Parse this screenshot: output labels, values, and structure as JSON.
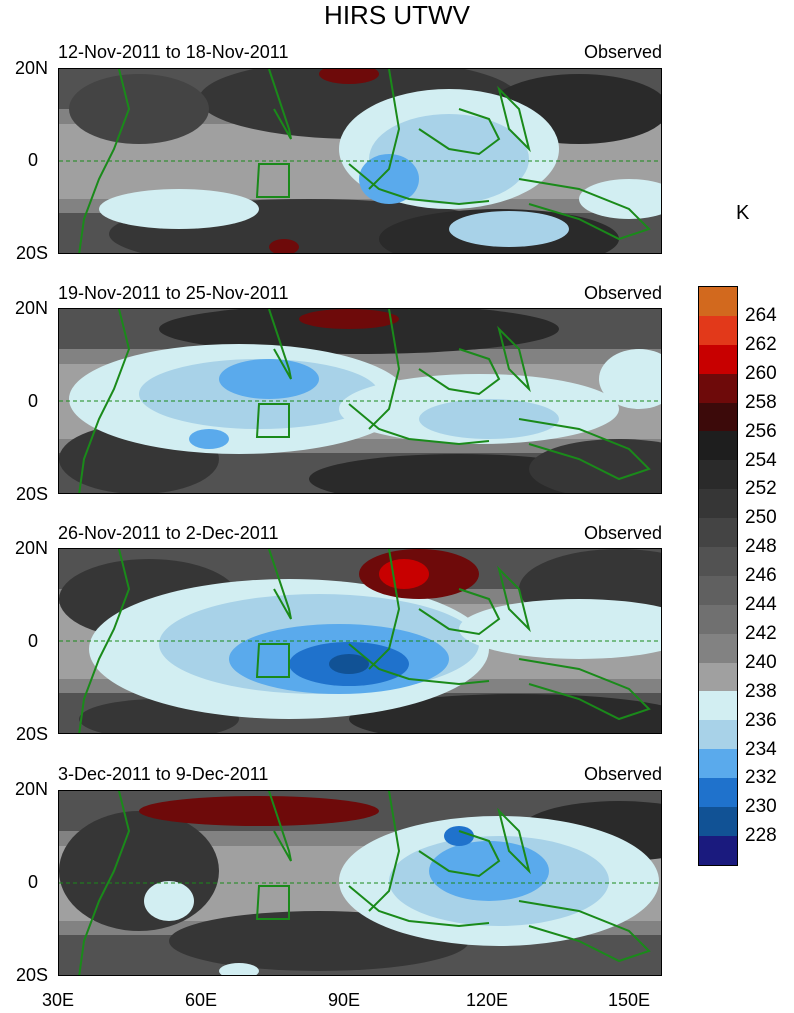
{
  "title": "HIRS UTWV",
  "panels": [
    {
      "date_range": "12-Nov-2011 to 18-Nov-2011",
      "label": "Observed"
    },
    {
      "date_range": "19-Nov-2011 to 25-Nov-2011",
      "label": "Observed"
    },
    {
      "date_range": "26-Nov-2011 to 2-Dec-2011",
      "label": "Observed"
    },
    {
      "date_range": "3-Dec-2011 to 9-Dec-2011",
      "label": "Observed"
    }
  ],
  "axes": {
    "lat_labels": [
      "20N",
      "0",
      "20S"
    ],
    "lon_labels": [
      "30E",
      "60E",
      "90E",
      "120E",
      "150E"
    ]
  },
  "colorbar": {
    "unit": "K",
    "labels": [
      "264",
      "262",
      "260",
      "258",
      "256",
      "254",
      "252",
      "250",
      "248",
      "246",
      "244",
      "242",
      "240",
      "238",
      "236",
      "234",
      "232",
      "230",
      "228"
    ],
    "colors": [
      "#d2691e",
      "#e2391a",
      "#c80000",
      "#6e0a0a",
      "#3c0a0a",
      "#1e1e1e",
      "#2a2a2a",
      "#363636",
      "#444444",
      "#525252",
      "#606060",
      "#707070",
      "#828282",
      "#a0a0a0",
      "#d2eef2",
      "#a8d2e8",
      "#5aaaec",
      "#1f72cc",
      "#115295",
      "#1a1a7e"
    ]
  },
  "map_colors": {
    "coast": "#1a8a1a",
    "equator": "#1a8a1a"
  }
}
